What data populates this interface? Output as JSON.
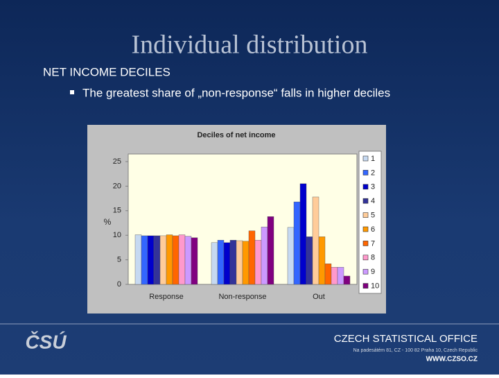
{
  "slide": {
    "title": "Individual distribution",
    "heading": "NET INCOME DECILES",
    "bullet": "The greatest share of „non-response“ falls in higher deciles",
    "logo": "ČSÚ",
    "office": "CZECH STATISTICAL OFFICE",
    "address": "Na padesátém 81, CZ - 100 82 Praha 10, Czech Republic",
    "web": "WWW.CZSO.CZ"
  },
  "chart_data": {
    "type": "bar",
    "title": "Deciles of net income",
    "y_label": "%",
    "categories": [
      "Response",
      "Non-response",
      "Out"
    ],
    "ylim": [
      0,
      25
    ],
    "yticks": [
      0,
      5,
      10,
      15,
      20,
      25
    ],
    "series": [
      {
        "name": "1",
        "color": "#c6d9f1",
        "values": [
          10.1,
          8.5,
          11.6
        ]
      },
      {
        "name": "2",
        "color": "#3366ff",
        "values": [
          9.9,
          9.0,
          16.8
        ]
      },
      {
        "name": "3",
        "color": "#0000cc",
        "values": [
          9.9,
          8.5,
          20.5
        ]
      },
      {
        "name": "4",
        "color": "#333399",
        "values": [
          9.9,
          9.0,
          9.7
        ]
      },
      {
        "name": "5",
        "color": "#ffcc99",
        "values": [
          9.9,
          8.9,
          17.8
        ]
      },
      {
        "name": "6",
        "color": "#ff9900",
        "values": [
          10.1,
          8.8,
          9.7
        ]
      },
      {
        "name": "7",
        "color": "#ff6600",
        "values": [
          9.9,
          10.9,
          4.2
        ]
      },
      {
        "name": "8",
        "color": "#ff99cc",
        "values": [
          10.1,
          9.0,
          3.5
        ]
      },
      {
        "name": "9",
        "color": "#cc99ff",
        "values": [
          9.8,
          11.7,
          3.5
        ]
      },
      {
        "name": "10",
        "color": "#800080",
        "values": [
          9.5,
          13.8,
          1.7
        ]
      }
    ]
  }
}
